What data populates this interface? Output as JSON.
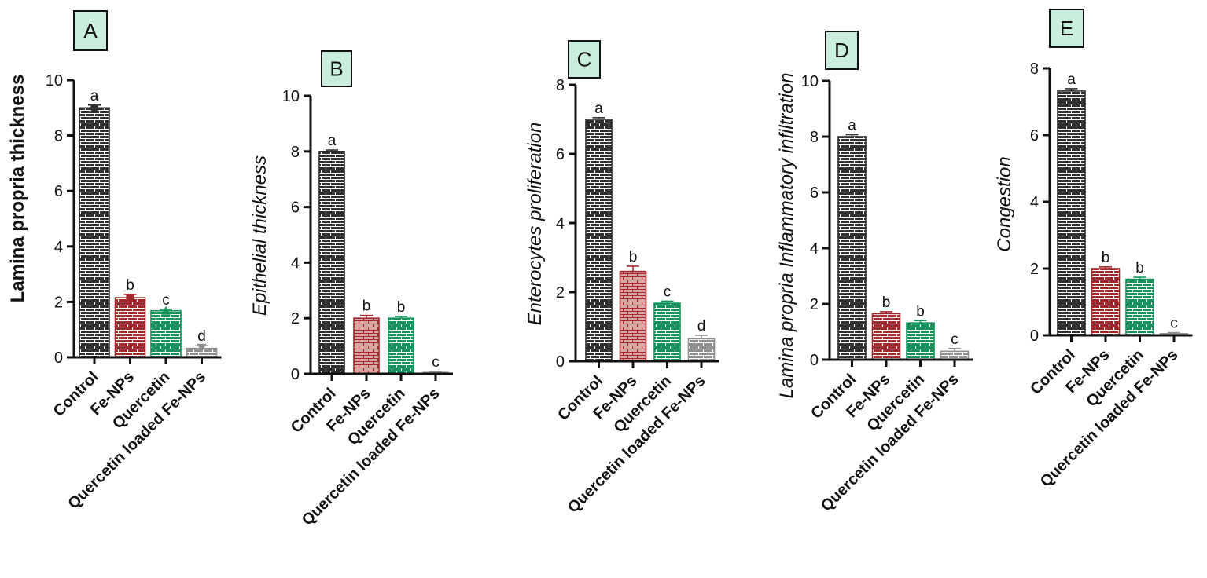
{
  "colors": {
    "control": "#2e2e2e",
    "fe_nps": "#a3262a",
    "fe_nps_light": "#d9a6a8",
    "quercetin": "#15925a",
    "quercetin_loaded": "#8f8f8f",
    "panel_label_bg": "#c9eedd",
    "axis": "#111111"
  },
  "chart_data": [
    {
      "type": "bar",
      "panel": "A",
      "categories": [
        "Control",
        "Fe-NPs",
        "Quercetin",
        "Quercetin loaded Fe-NPs"
      ],
      "values": [
        9.0,
        2.15,
        1.68,
        0.32
      ],
      "errors": [
        0.1,
        0.12,
        0.05,
        0.1
      ],
      "letters": [
        "a",
        "b",
        "c",
        "d"
      ],
      "ylabel": "Lamina propria thickness",
      "ylim": [
        0,
        10
      ],
      "yticks": [
        0,
        2,
        4,
        6,
        8,
        10
      ],
      "markers": [
        "circle",
        "square",
        "triangle-up",
        "triangle-down"
      ]
    },
    {
      "type": "bar",
      "panel": "B",
      "categories": [
        "Control",
        "Fe-NPs",
        "Quercetin",
        "Quercetin loaded Fe-NPs"
      ],
      "values": [
        8.0,
        2.0,
        2.0,
        0.05
      ],
      "errors": [
        0.05,
        0.1,
        0.06,
        0.03
      ],
      "letters": [
        "a",
        "b",
        "b",
        "c"
      ],
      "ylabel": "Epithelial thickness",
      "ylim": [
        0,
        10
      ],
      "yticks": [
        0,
        2,
        4,
        6,
        8,
        10
      ],
      "markers": []
    },
    {
      "type": "bar",
      "panel": "C",
      "categories": [
        "Control",
        "Fe-NPs",
        "Quercetin",
        "Quercetin loaded Fe-NPs"
      ],
      "values": [
        7.0,
        2.6,
        1.68,
        0.65
      ],
      "errors": [
        0.05,
        0.15,
        0.06,
        0.1
      ],
      "letters": [
        "a",
        "b",
        "c",
        "d"
      ],
      "ylabel": "Enterocytes proliferation",
      "ylim": [
        0,
        8
      ],
      "yticks": [
        0,
        2,
        4,
        6,
        8
      ],
      "markers": []
    },
    {
      "type": "bar",
      "panel": "D",
      "categories": [
        "Control",
        "Fe-NPs",
        "Quercetin",
        "Quercetin loaded Fe-NPs"
      ],
      "values": [
        8.0,
        1.65,
        1.32,
        0.3
      ],
      "errors": [
        0.07,
        0.07,
        0.08,
        0.1
      ],
      "letters": [
        "a",
        "b",
        "b",
        "c"
      ],
      "ylabel": "Lamina propria Inflammatory infiltration",
      "ylim": [
        0,
        10
      ],
      "yticks": [
        0,
        2,
        4,
        6,
        8,
        10
      ],
      "markers": []
    },
    {
      "type": "bar",
      "panel": "E",
      "categories": [
        "Control",
        "Fe-NPs",
        "Quercetin",
        "Quercetin loaded Fe-NPs"
      ],
      "values": [
        7.32,
        2.0,
        1.68,
        0.05
      ],
      "errors": [
        0.07,
        0.05,
        0.06,
        0.03
      ],
      "letters": [
        "a",
        "b",
        "b",
        "c"
      ],
      "ylabel": "Congestion",
      "ylim": [
        0,
        8
      ],
      "yticks": [
        0,
        2,
        4,
        6,
        8
      ],
      "markers": []
    }
  ]
}
